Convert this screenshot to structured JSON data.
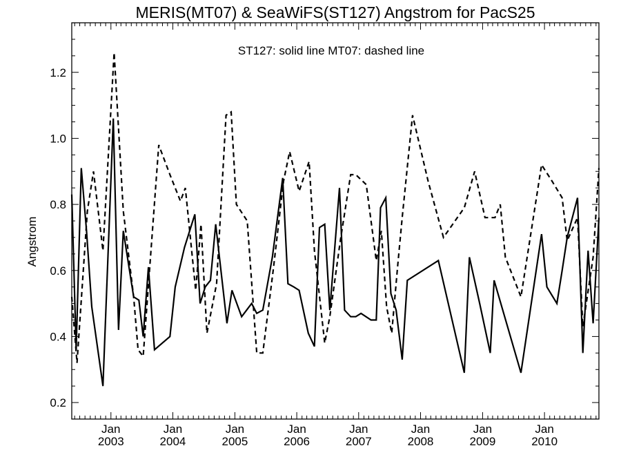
{
  "chart_data": {
    "type": "line",
    "title": "MERIS(MT07) & SeaWiFS(ST127)  Angstrom for PacS25",
    "annotation": "ST127: solid line   MT07: dashed line",
    "xlabel": "",
    "ylabel": "Angstrom",
    "xlim": [
      "2002-05-15",
      "2010-11-18"
    ],
    "ylim": [
      0.15,
      1.35
    ],
    "ytick_labels": [
      "0.2",
      "0.4",
      "0.6",
      "0.8",
      "1.0",
      "1.2"
    ],
    "xtick_month_label": "Jan",
    "xtick_labels": [
      "2003",
      "2004",
      "2005",
      "2006",
      "2007",
      "2008",
      "2009",
      "2010"
    ],
    "grid": false,
    "colors": {
      "line": "#000000",
      "background": "#ffffff"
    },
    "series": [
      {
        "name": "ST127",
        "style": "solid",
        "points": [
          [
            "2002-05-15",
            0.83
          ],
          [
            "2002-06-10",
            0.36
          ],
          [
            "2002-07-10",
            0.91
          ],
          [
            "2002-08-10",
            0.72
          ],
          [
            "2002-09-10",
            0.49
          ],
          [
            "2002-11-15",
            0.25
          ],
          [
            "2003-01-15",
            1.06
          ],
          [
            "2003-02-15",
            0.42
          ],
          [
            "2003-03-15",
            0.72
          ],
          [
            "2003-05-15",
            0.52
          ],
          [
            "2003-06-15",
            0.51
          ],
          [
            "2003-07-10",
            0.4
          ],
          [
            "2003-08-10",
            0.61
          ],
          [
            "2003-09-15",
            0.36
          ],
          [
            "2003-12-15",
            0.4
          ],
          [
            "2004-01-15",
            0.55
          ],
          [
            "2004-03-10",
            0.67
          ],
          [
            "2004-05-10",
            0.77
          ],
          [
            "2004-06-10",
            0.5
          ],
          [
            "2004-07-10",
            0.55
          ],
          [
            "2004-08-10",
            0.57
          ],
          [
            "2004-09-10",
            0.74
          ],
          [
            "2004-11-15",
            0.44
          ],
          [
            "2004-12-15",
            0.54
          ],
          [
            "2005-02-10",
            0.46
          ],
          [
            "2005-04-10",
            0.5
          ],
          [
            "2005-05-10",
            0.47
          ],
          [
            "2005-06-15",
            0.48
          ],
          [
            "2005-08-10",
            0.64
          ],
          [
            "2005-10-10",
            0.88
          ],
          [
            "2005-11-10",
            0.56
          ],
          [
            "2005-12-15",
            0.55
          ],
          [
            "2006-01-15",
            0.54
          ],
          [
            "2006-03-10",
            0.41
          ],
          [
            "2006-04-15",
            0.37
          ],
          [
            "2006-05-15",
            0.73
          ],
          [
            "2006-06-15",
            0.74
          ],
          [
            "2006-07-15",
            0.48
          ],
          [
            "2006-09-10",
            0.85
          ],
          [
            "2006-10-10",
            0.48
          ],
          [
            "2006-11-15",
            0.46
          ],
          [
            "2006-12-15",
            0.46
          ],
          [
            "2007-01-15",
            0.47
          ],
          [
            "2007-03-15",
            0.45
          ],
          [
            "2007-04-15",
            0.45
          ],
          [
            "2007-05-10",
            0.79
          ],
          [
            "2007-06-10",
            0.82
          ],
          [
            "2007-07-10",
            0.53
          ],
          [
            "2007-08-10",
            0.48
          ],
          [
            "2007-09-15",
            0.33
          ],
          [
            "2007-10-15",
            0.57
          ],
          [
            "2008-04-15",
            0.63
          ],
          [
            "2008-09-15",
            0.29
          ],
          [
            "2008-10-15",
            0.64
          ],
          [
            "2008-12-15",
            0.5
          ],
          [
            "2009-02-15",
            0.35
          ],
          [
            "2009-03-10",
            0.57
          ],
          [
            "2009-08-15",
            0.29
          ],
          [
            "2009-12-15",
            0.71
          ],
          [
            "2010-01-15",
            0.55
          ],
          [
            "2010-03-15",
            0.5
          ],
          [
            "2010-04-15",
            0.6
          ],
          [
            "2010-05-15",
            0.7
          ],
          [
            "2010-07-15",
            0.82
          ],
          [
            "2010-08-15",
            0.35
          ],
          [
            "2010-09-15",
            0.66
          ],
          [
            "2010-10-15",
            0.44
          ],
          [
            "2010-11-18",
            0.76
          ]
        ]
      },
      {
        "name": "MT07",
        "style": "dashed",
        "points": [
          [
            "2002-05-15",
            0.52
          ],
          [
            "2002-06-15",
            0.32
          ],
          [
            "2002-08-15",
            0.78
          ],
          [
            "2002-09-20",
            0.9
          ],
          [
            "2002-11-15",
            0.66
          ],
          [
            "2003-01-20",
            1.26
          ],
          [
            "2003-03-15",
            0.78
          ],
          [
            "2003-05-15",
            0.52
          ],
          [
            "2003-06-10",
            0.36
          ],
          [
            "2003-07-10",
            0.34
          ],
          [
            "2003-10-10",
            0.98
          ],
          [
            "2003-12-15",
            0.89
          ],
          [
            "2004-02-15",
            0.81
          ],
          [
            "2004-03-15",
            0.85
          ],
          [
            "2004-05-15",
            0.54
          ],
          [
            "2004-06-15",
            0.74
          ],
          [
            "2004-07-20",
            0.41
          ],
          [
            "2004-09-15",
            0.56
          ],
          [
            "2004-11-10",
            1.07
          ],
          [
            "2004-12-10",
            1.08
          ],
          [
            "2005-01-10",
            0.8
          ],
          [
            "2005-03-15",
            0.75
          ],
          [
            "2005-05-10",
            0.35
          ],
          [
            "2005-06-15",
            0.35
          ],
          [
            "2005-08-15",
            0.6
          ],
          [
            "2005-10-15",
            0.87
          ],
          [
            "2005-11-20",
            0.96
          ],
          [
            "2006-01-15",
            0.84
          ],
          [
            "2006-03-15",
            0.93
          ],
          [
            "2006-04-15",
            0.66
          ],
          [
            "2006-06-15",
            0.38
          ],
          [
            "2006-07-15",
            0.46
          ],
          [
            "2006-09-15",
            0.69
          ],
          [
            "2006-11-15",
            0.89
          ],
          [
            "2006-12-15",
            0.89
          ],
          [
            "2007-02-15",
            0.86
          ],
          [
            "2007-04-15",
            0.63
          ],
          [
            "2007-05-15",
            0.72
          ],
          [
            "2007-06-15",
            0.49
          ],
          [
            "2007-07-15",
            0.41
          ],
          [
            "2007-08-20",
            0.62
          ],
          [
            "2007-09-15",
            0.76
          ],
          [
            "2007-11-15",
            1.07
          ],
          [
            "2008-02-15",
            0.87
          ],
          [
            "2008-05-15",
            0.7
          ],
          [
            "2008-09-15",
            0.79
          ],
          [
            "2008-11-15",
            0.9
          ],
          [
            "2009-01-15",
            0.76
          ],
          [
            "2009-03-15",
            0.76
          ],
          [
            "2009-04-15",
            0.8
          ],
          [
            "2009-05-15",
            0.64
          ],
          [
            "2009-08-15",
            0.52
          ],
          [
            "2009-12-15",
            0.92
          ],
          [
            "2010-02-15",
            0.87
          ],
          [
            "2010-04-15",
            0.82
          ],
          [
            "2010-05-15",
            0.69
          ],
          [
            "2010-07-15",
            0.76
          ],
          [
            "2010-08-15",
            0.43
          ],
          [
            "2010-10-15",
            0.64
          ],
          [
            "2010-11-18",
            0.91
          ]
        ]
      }
    ]
  }
}
